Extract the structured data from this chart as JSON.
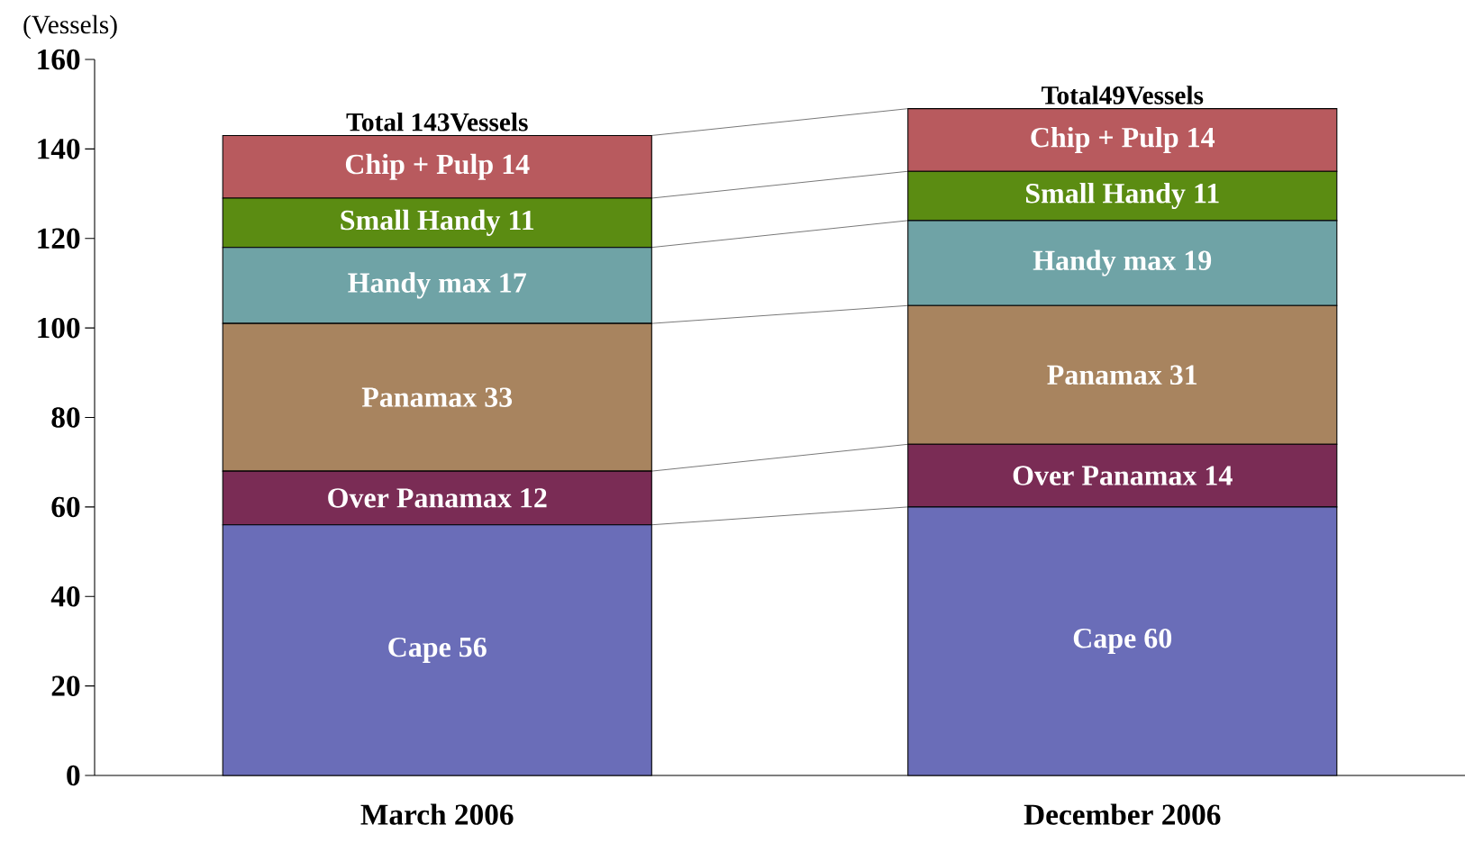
{
  "chart_data": {
    "type": "bar",
    "stacked": true,
    "ylabel": "(Vessels)",
    "categories": [
      "March 2006",
      "December 2006"
    ],
    "ylim": [
      0,
      160
    ],
    "yticks": [
      0,
      20,
      40,
      60,
      80,
      100,
      120,
      140,
      160
    ],
    "totals": [
      "Total 143Vessels",
      "Total49Vessels"
    ],
    "series": [
      {
        "color": "#6a6db8",
        "values": [
          56,
          60
        ],
        "value_labels": [
          "Cape 56",
          "Cape 60"
        ]
      },
      {
        "color": "#7a2c55",
        "values": [
          12,
          14
        ],
        "value_labels": [
          "Over Panamax 12",
          "Over Panamax 14"
        ]
      },
      {
        "color": "#a8845f",
        "values": [
          33,
          31
        ],
        "value_labels": [
          "Panamax 33",
          "Panamax 31"
        ]
      },
      {
        "color": "#6fa3a6",
        "values": [
          17,
          19
        ],
        "value_labels": [
          "Handy max 17",
          "Handy max 19"
        ]
      },
      {
        "color": "#5b8c12",
        "values": [
          11,
          11
        ],
        "value_labels": [
          "Small Handy 11",
          "Small Handy 11"
        ]
      },
      {
        "color": "#b85a5e",
        "values": [
          14,
          14
        ],
        "value_labels": [
          "Chip + Pulp 14",
          "Chip + Pulp 14"
        ]
      }
    ]
  }
}
